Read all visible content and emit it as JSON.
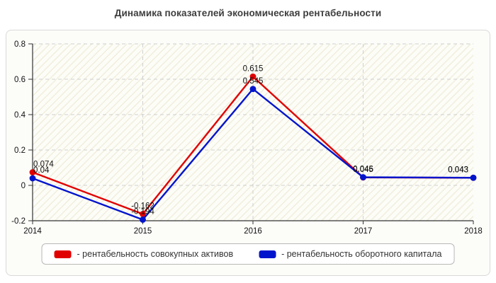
{
  "title": "Динамика показателей экономическая рентабельности",
  "chart_data": {
    "type": "line",
    "x": [
      "2014",
      "2015",
      "2016",
      "2017",
      "2018"
    ],
    "series": [
      {
        "name": "рентабельность совокупных активов",
        "color": "#e00000",
        "values": [
          0.074,
          -0.162,
          0.615,
          0.045,
          0.043
        ],
        "labels": [
          "0.074",
          "-0.162",
          "0.615",
          "0.045",
          "0.043"
        ]
      },
      {
        "name": "рентабельность оборотного капитала",
        "color": "#0014cc",
        "values": [
          0.04,
          -0.194,
          0.545,
          0.046,
          0.043
        ],
        "labels": [
          "0.04",
          "-0.194",
          "0.545",
          "0.046",
          "0.043"
        ]
      }
    ],
    "ylim": [
      -0.2,
      0.8
    ],
    "yticks": [
      "0.8",
      "0.6",
      "0.4",
      "0.2",
      "0",
      "-0.2"
    ],
    "grid": true,
    "grid_style": "dashed",
    "legend_position": "bottom"
  },
  "legend": {
    "items": [
      {
        "label": "- рентабельность совокупных активов",
        "color": "#e00000"
      },
      {
        "label": "- рентабельность оборотного капитала",
        "color": "#0014cc"
      }
    ]
  },
  "colors": {
    "panel_bg": "#fcfcf9",
    "panel_border": "#d9d9d9",
    "hatch_stripe": "#f1eedd",
    "gridline": "#cfcfcf",
    "axis": "#333333",
    "label_text": "#111111"
  }
}
